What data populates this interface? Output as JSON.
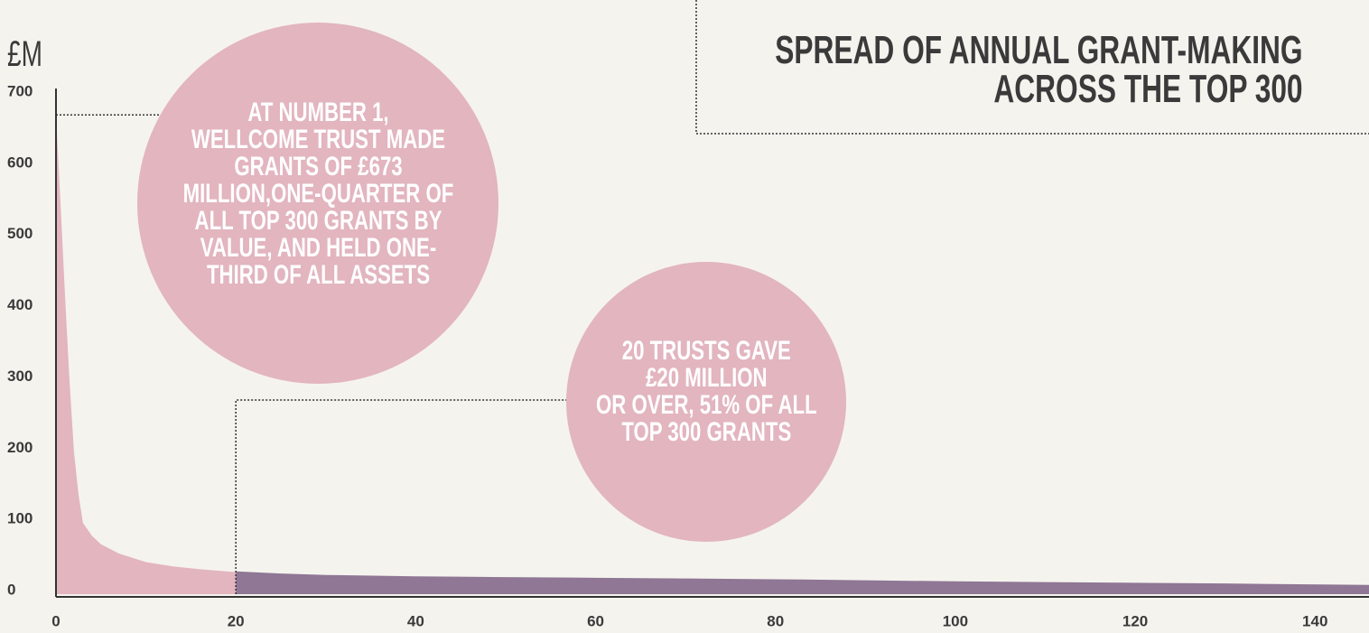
{
  "chart_data": {
    "type": "area",
    "title": [
      "SPREAD OF ANNUAL GRANT-MAKING",
      "ACROSS THE TOP 300"
    ],
    "y_label": "£M",
    "series": [
      {
        "color": "#e2b5bf",
        "x": [
          0,
          0.5,
          1,
          1.5,
          2,
          2.5,
          3,
          4,
          5,
          7,
          10,
          13,
          16,
          20
        ],
        "values": [
          673,
          550,
          420,
          300,
          200,
          140,
          100,
          82,
          70,
          57,
          45,
          39,
          35,
          31
        ]
      },
      {
        "color": "#8f7795",
        "x": [
          20,
          25,
          30,
          40,
          50,
          60,
          70,
          80,
          90,
          100,
          110,
          120,
          130,
          146
        ],
        "values": [
          32,
          29,
          27,
          25,
          24,
          23,
          22,
          21,
          19.5,
          18,
          17,
          16,
          15,
          13
        ]
      }
    ],
    "annotations": [
      {
        "lines": [
          "AT NUMBER 1,",
          "WELLCOME TRUST MADE",
          "GRANTS OF £673",
          "MILLION,ONE-QUARTER OF",
          "ALL TOP 300 GRANTS BY",
          "VALUE, AND HELD ONE-",
          "THIRD OF ALL ASSETS"
        ]
      },
      {
        "lines": [
          "20 TRUSTS GAVE",
          "£20 MILLION",
          "OR OVER, 51% OF ALL",
          "TOP 300 GRANTS"
        ]
      }
    ],
    "xlim": [
      0,
      146
    ],
    "ylim": [
      0,
      700
    ],
    "xticks": [
      0,
      20,
      40,
      60,
      80,
      100,
      120,
      140
    ],
    "yticks": [
      0,
      100,
      200,
      300,
      400,
      500,
      600,
      700
    ]
  }
}
